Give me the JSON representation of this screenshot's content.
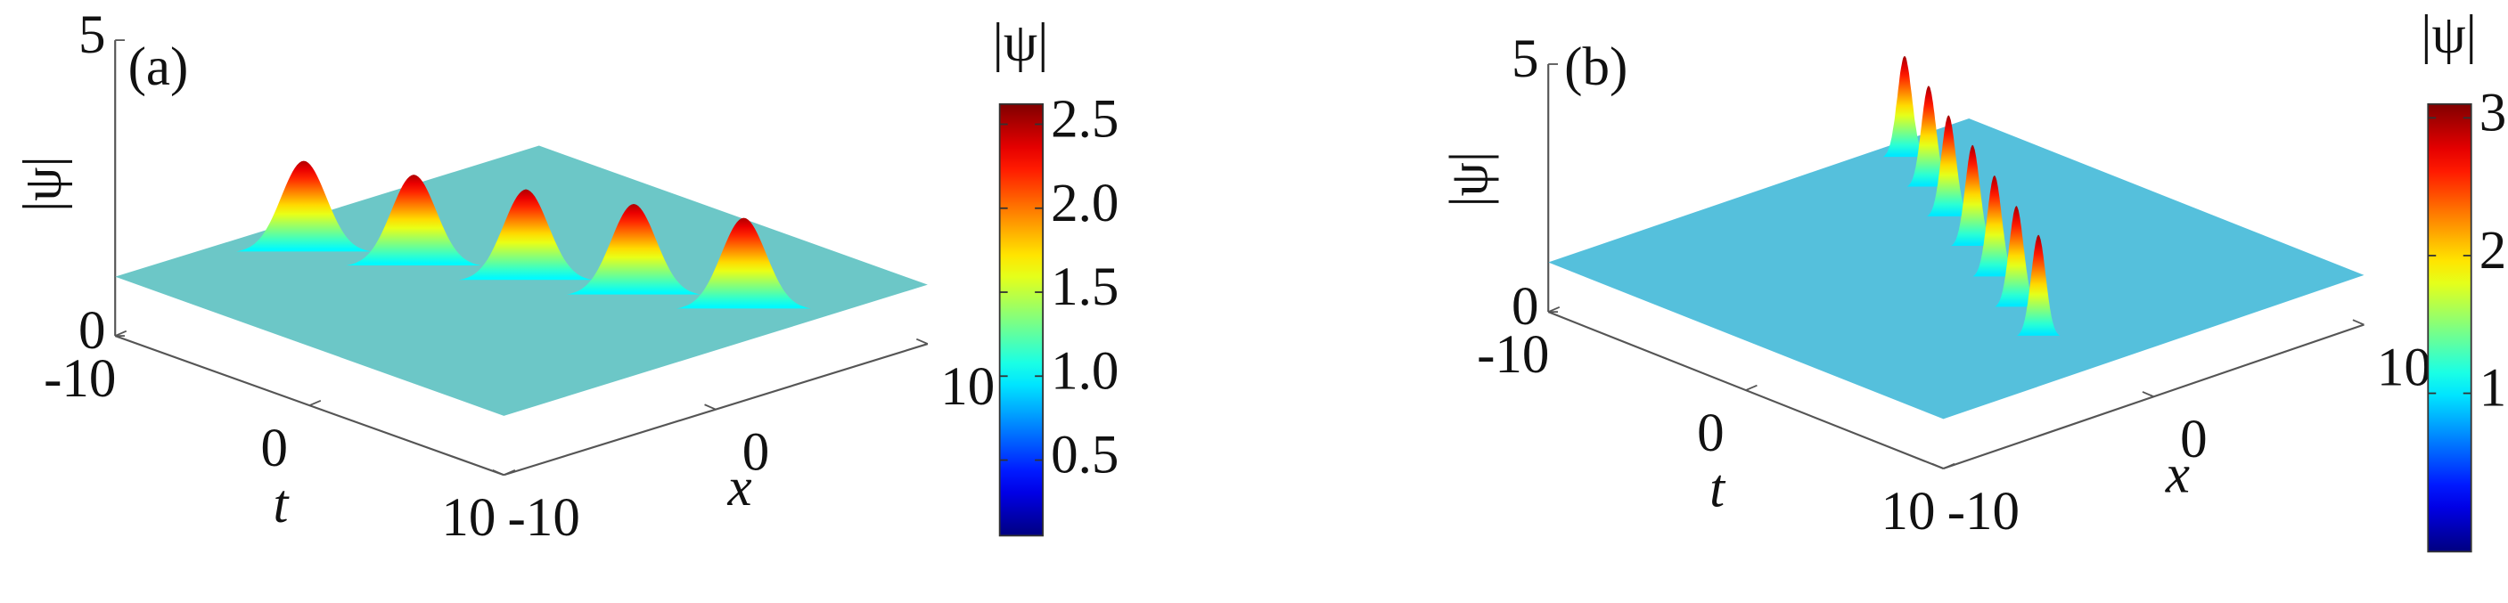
{
  "chart_data": [
    {
      "type": "surface",
      "panel_label": "(a)",
      "zlabel": "|ψ|",
      "tlabel": "t",
      "xlabel": "x",
      "tlim": [
        -10,
        10
      ],
      "tticks": [
        -10,
        0,
        10
      ],
      "xlim": [
        -10,
        10
      ],
      "xticks": [
        -10,
        0,
        10
      ],
      "zlim": [
        0,
        5
      ],
      "zticks": [
        0,
        5
      ],
      "plane": 1,
      "color": "#6cc7c7",
      "peaks": {
        "t": [
          -7.6,
          -3.9,
          -0.1,
          3.6,
          7.3
        ],
        "x": [
          -3.3,
          -1.5,
          0.3,
          2.0,
          3.8
        ],
        "values": [
          2.5,
          2.5,
          2.5,
          2.5,
          2.5
        ]
      },
      "colorbar": {
        "label": "|ψ|",
        "lim": [
          0.05,
          2.62
        ],
        "ticks": [
          0.5,
          {
            "value": 1,
            "label": "1.0"
          },
          1.5,
          {
            "value": 2,
            "label": "2.0"
          },
          2.5
        ]
      }
    },
    {
      "type": "surface",
      "panel_label": "(b)",
      "zlabel": "|ψ|",
      "tlabel": "t",
      "xlabel": "x",
      "tlim": [
        -10,
        10
      ],
      "tticks": [
        -10,
        0,
        10
      ],
      "xlim": [
        -10,
        10
      ],
      "xticks": [
        -10,
        0,
        10
      ],
      "zlim": [
        0,
        5
      ],
      "zticks": [
        0,
        5
      ],
      "plane": 1,
      "color": "#55c0dc",
      "peaks": {
        "t": [
          -9,
          -6.4,
          -3.9,
          -1.3,
          1.3,
          3.9,
          6.4
        ],
        "x": [
          6,
          4.7,
          3.3,
          2,
          0.6,
          -0.8,
          -2.1
        ],
        "values": [
          3,
          3,
          3,
          3,
          3,
          3,
          3
        ]
      },
      "colorbar": {
        "label": "|ψ|",
        "lim": [
          -0.15,
          3.1
        ],
        "ticks": [
          1,
          2,
          3
        ]
      }
    }
  ]
}
